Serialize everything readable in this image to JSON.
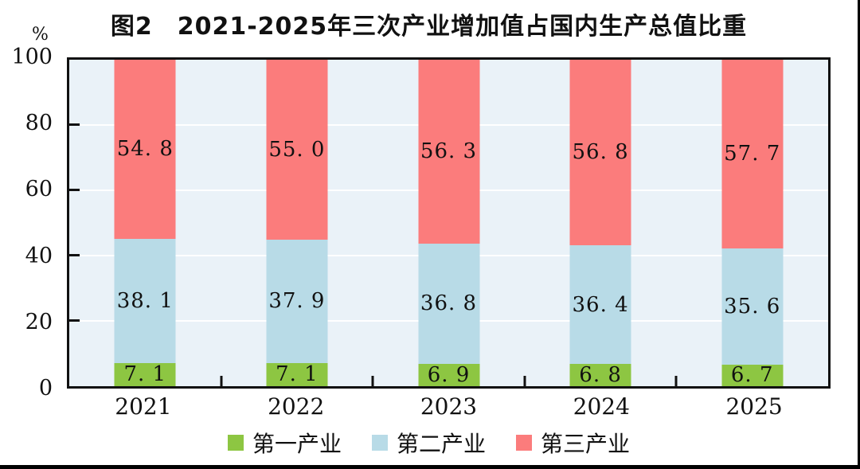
{
  "figure": {
    "title": "图2　2021-2025年三次产业增加值占国内生产总值比重",
    "unit_label": "%"
  },
  "chart_data": {
    "type": "bar",
    "stacked": true,
    "title": "图2 2021-2025年三次产业增加值占国内生产总值比重",
    "xlabel": "",
    "ylabel": "%",
    "ylim": [
      0,
      100
    ],
    "yticks": [
      0,
      20,
      40,
      60,
      80,
      100
    ],
    "grid": true,
    "gridline_color": "#FFFFFF",
    "plot_background": "#EAF2F8",
    "legend_position": "bottom",
    "categories": [
      "2021",
      "2022",
      "2023",
      "2024",
      "2025"
    ],
    "series": [
      {
        "name": "第一产业",
        "color": "#8DC642",
        "values": [
          7.1,
          7.1,
          6.9,
          6.8,
          6.7
        ],
        "labels": [
          "7. 1",
          "7. 1",
          "6. 9",
          "6. 8",
          "6. 7"
        ]
      },
      {
        "name": "第二产业",
        "color": "#B8DBE7",
        "values": [
          38.1,
          37.9,
          36.8,
          36.4,
          35.6
        ],
        "labels": [
          "38. 1",
          "37. 9",
          "36. 8",
          "36. 4",
          "35. 6"
        ]
      },
      {
        "name": "第三产业",
        "color": "#FB7C7C",
        "values": [
          54.8,
          55.0,
          56.3,
          56.8,
          57.7
        ],
        "labels": [
          "54. 8",
          "55. 0",
          "56. 3",
          "56. 8",
          "57. 7"
        ]
      }
    ]
  }
}
